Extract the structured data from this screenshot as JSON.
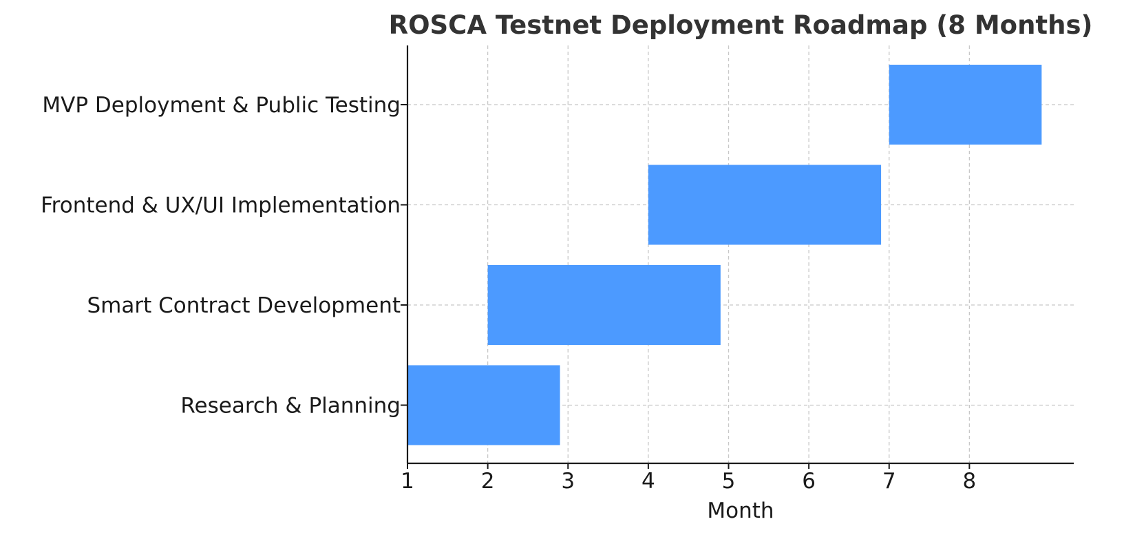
{
  "chart_data": {
    "type": "bar",
    "orientation": "horizontal",
    "title": "ROSCA Testnet Deployment Roadmap (8 Months)",
    "xlabel": "Month",
    "ylabel": "",
    "xlim": [
      1,
      9.3
    ],
    "xticks": [
      1,
      2,
      3,
      4,
      5,
      6,
      7,
      8
    ],
    "grid": true,
    "bar_color": "#4c9aff",
    "tasks": [
      {
        "label": "Research & Planning",
        "start": 1,
        "end": 2.9
      },
      {
        "label": "Smart Contract Development",
        "start": 2,
        "end": 4.9
      },
      {
        "label": "Frontend & UX/UI Implementation",
        "start": 4,
        "end": 6.9
      },
      {
        "label": "MVP Deployment & Public Testing",
        "start": 7,
        "end": 8.9
      }
    ]
  }
}
